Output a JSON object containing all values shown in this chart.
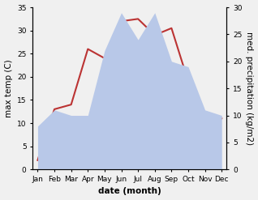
{
  "months": [
    "Jan",
    "Feb",
    "Mar",
    "Apr",
    "May",
    "Jun",
    "Jul",
    "Aug",
    "Sep",
    "Oct",
    "Nov",
    "Dec"
  ],
  "max_temp": [
    2,
    13,
    14,
    26,
    24,
    32,
    32.5,
    29,
    30.5,
    19,
    12,
    11
  ],
  "precipitation": [
    8,
    11,
    10,
    10,
    22,
    29,
    24,
    29,
    20,
    19,
    11,
    10
  ],
  "temp_color": "#bb3333",
  "precip_fill_color": "#b8c8e8",
  "temp_ylim": [
    0,
    35
  ],
  "precip_ylim": [
    0,
    30
  ],
  "temp_yticks": [
    0,
    5,
    10,
    15,
    20,
    25,
    30,
    35
  ],
  "precip_yticks": [
    0,
    5,
    10,
    15,
    20,
    25,
    30
  ],
  "xlabel": "date (month)",
  "ylabel_left": "max temp (C)",
  "ylabel_right": "med. precipitation (kg/m2)",
  "label_fontsize": 7.5,
  "tick_fontsize": 6.5
}
